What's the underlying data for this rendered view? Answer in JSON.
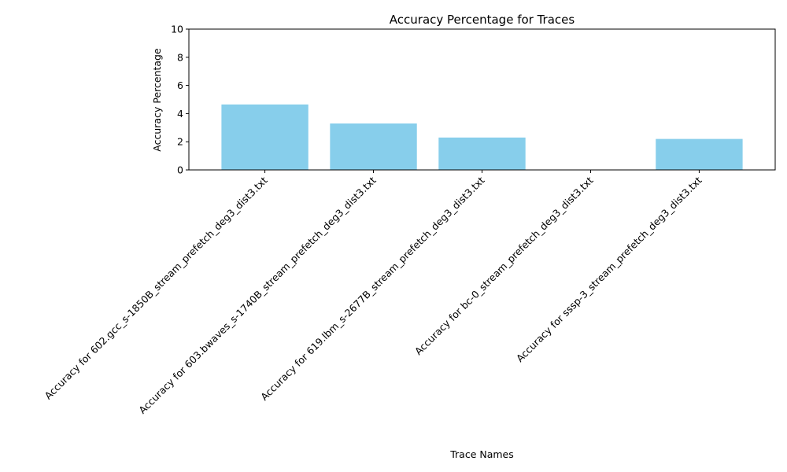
{
  "chart_data": {
    "type": "bar",
    "title": "Accuracy Percentage for Traces",
    "xlabel": "Trace Names",
    "ylabel": "Accuracy Percentage",
    "ylim": [
      0,
      10
    ],
    "yticks": [
      "0",
      "2",
      "4",
      "6",
      "8",
      "10"
    ],
    "grid": false,
    "legend": "none",
    "categories": [
      "Accuracy for 602.gcc_s-1850B_stream_prefetch_deg3_dist3.txt",
      "Accuracy for 603.bwaves_s-1740B_stream_prefetch_deg3_dist3.txt",
      "Accuracy for 619.lbm_s-2677B_stream_prefetch_deg3_dist3.txt",
      "Accuracy for bc-0_stream_prefetch_deg3_dist3.txt",
      "Accuracy for sssp-3_stream_prefetch_deg3_dist3.txt"
    ],
    "values": [
      4.65,
      3.3,
      2.3,
      0,
      2.2
    ],
    "bar_color": "#87ceeb"
  }
}
